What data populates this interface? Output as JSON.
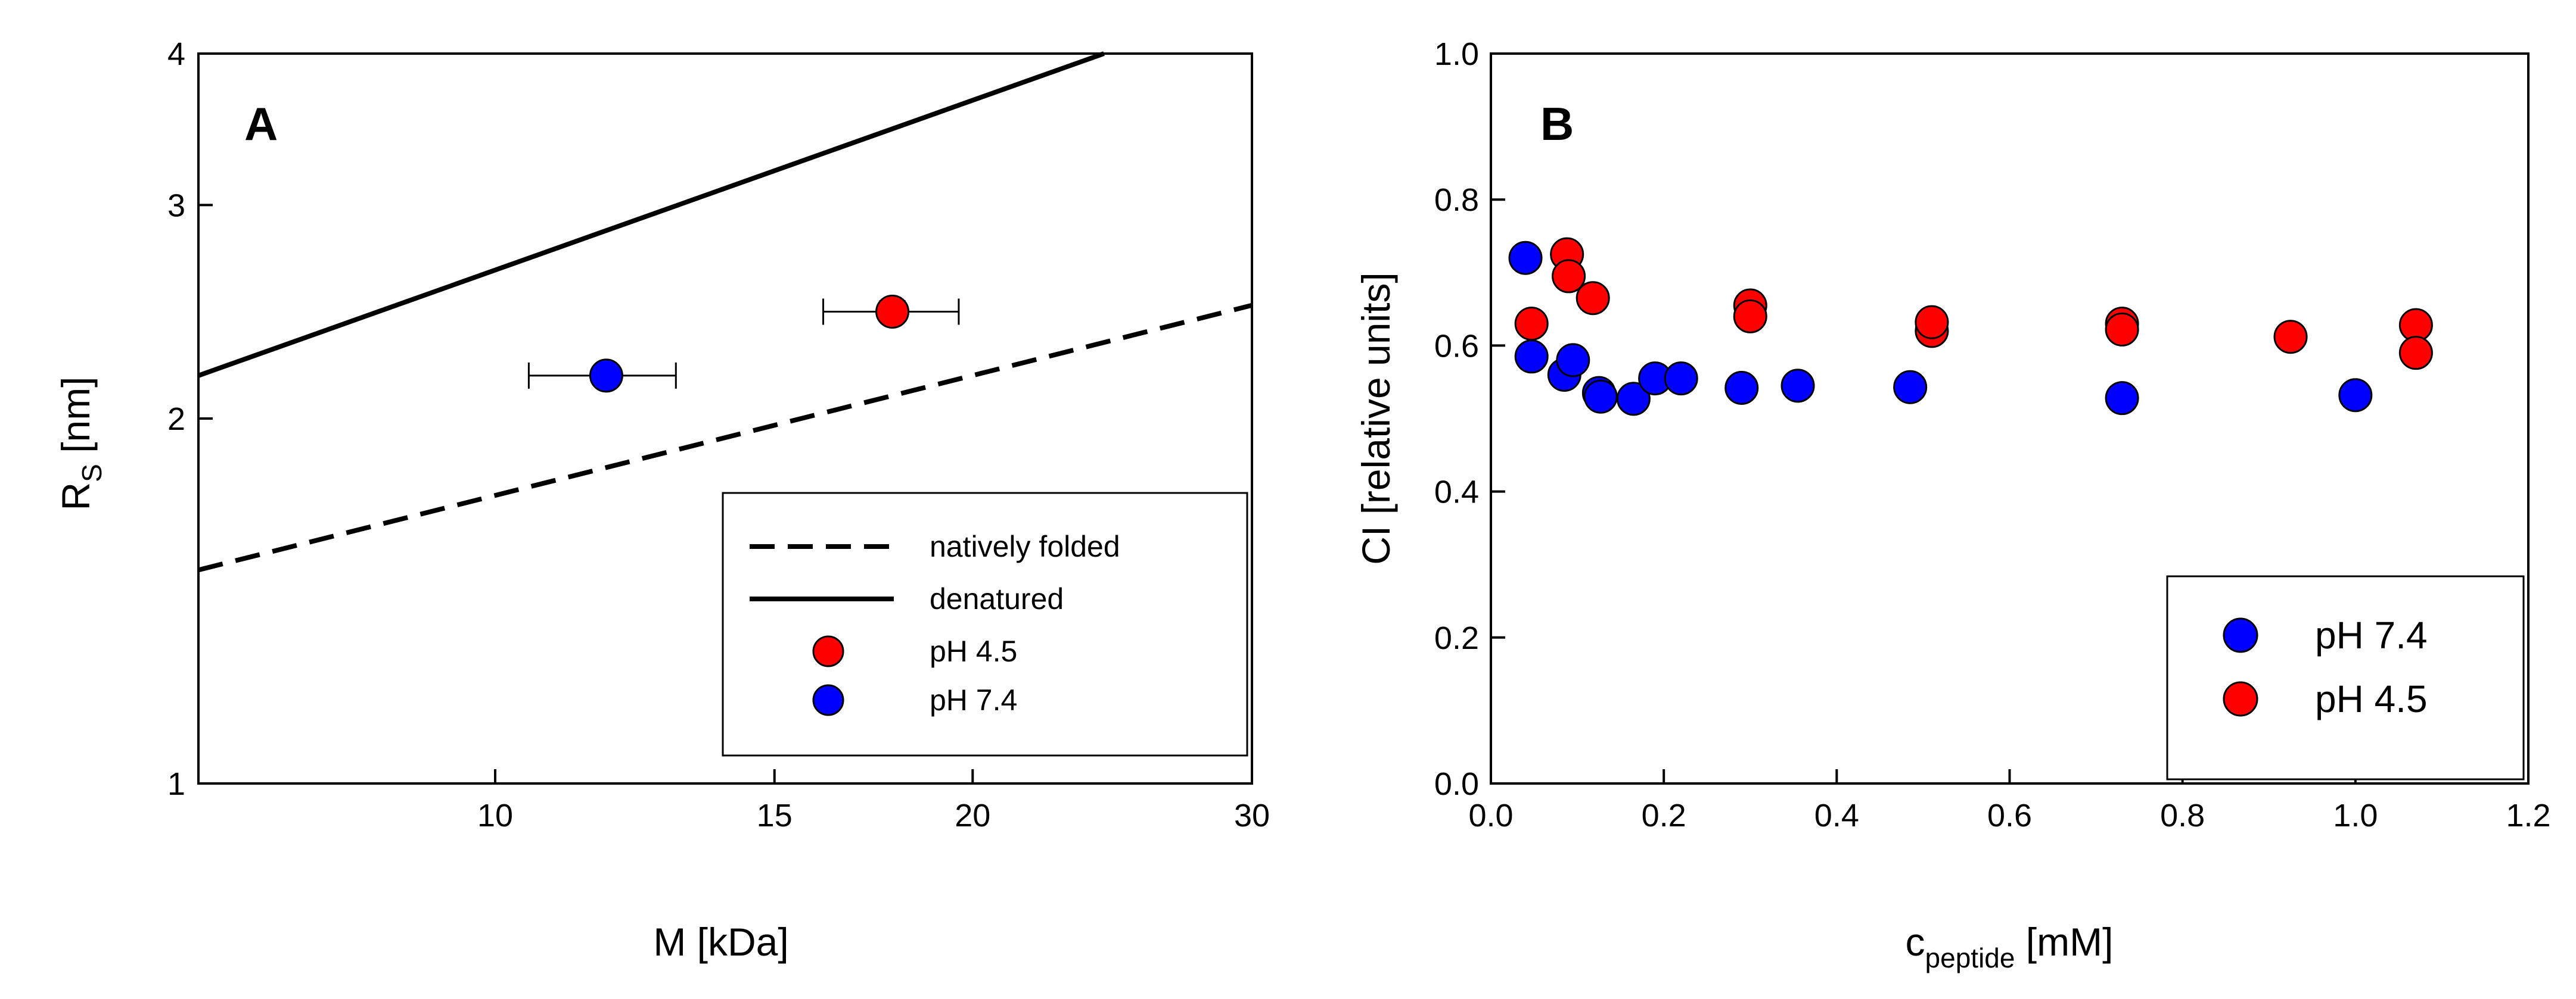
{
  "chart_data": [
    {
      "type": "scatter",
      "panel_label": "A",
      "xscale": "log",
      "yscale": "log",
      "xlim": [
        6.5,
        30
      ],
      "ylim": [
        1,
        4
      ],
      "xticks": [
        10,
        15,
        20,
        30
      ],
      "yticks": [
        1,
        2,
        3,
        4
      ],
      "xlabel": "M [kDa]",
      "ylabel_main": "R",
      "ylabel_sub": "S",
      "ylabel_tail": " [nm]",
      "lines": [
        {
          "name": "natively folded",
          "style": "dashed",
          "x": [
            6.5,
            30
          ],
          "y": [
            1.5,
            2.48
          ]
        },
        {
          "name": "denatured",
          "style": "solid",
          "x": [
            6.5,
            24.2
          ],
          "y": [
            2.17,
            4.0
          ]
        }
      ],
      "points": [
        {
          "name": "pH 7.4",
          "color": "#0000ff",
          "x": 11.75,
          "y": 2.17,
          "xerr": [
            10.5,
            13.0
          ],
          "yerr": [
            2.13,
            2.21
          ]
        },
        {
          "name": "pH 4.5",
          "color": "#ff0000",
          "x": 17.8,
          "y": 2.45,
          "xerr": [
            16.1,
            19.6
          ],
          "yerr": [
            2.41,
            2.5
          ]
        }
      ],
      "legend": {
        "position": "bottom-right",
        "entries": [
          {
            "label": "natively folded",
            "kind": "dashed"
          },
          {
            "label": "denatured",
            "kind": "solid"
          },
          {
            "label": "pH 4.5",
            "kind": "marker",
            "color": "#ff0000"
          },
          {
            "label": "pH 7.4",
            "kind": "marker",
            "color": "#0000ff"
          }
        ]
      }
    },
    {
      "type": "scatter",
      "panel_label": "B",
      "xlim": [
        0,
        1.2
      ],
      "ylim": [
        0,
        1
      ],
      "xticks": [
        "0.0",
        "0.2",
        "0.4",
        "0.6",
        "0.8",
        "1.0",
        "1.2"
      ],
      "yticks": [
        "0.0",
        "0.2",
        "0.4",
        "0.6",
        "0.8",
        "1.0"
      ],
      "xlabel_main": "c",
      "xlabel_sub": "peptide",
      "xlabel_tail": " [mM]",
      "ylabel": "CI [relative units]",
      "series": [
        {
          "name": "pH 7.4",
          "color": "#0000ff",
          "x": [
            0.04,
            0.047,
            0.085,
            0.095,
            0.125,
            0.127,
            0.165,
            0.19,
            0.22,
            0.29,
            0.355,
            0.485,
            0.73,
            1.0
          ],
          "y": [
            0.72,
            0.585,
            0.56,
            0.58,
            0.535,
            0.53,
            0.527,
            0.555,
            0.555,
            0.542,
            0.545,
            0.543,
            0.528,
            0.532
          ]
        },
        {
          "name": "pH 4.5",
          "color": "#ff0000",
          "x": [
            0.047,
            0.088,
            0.09,
            0.118,
            0.3,
            0.3,
            0.51,
            0.51,
            0.73,
            0.73,
            0.925,
            1.07,
            1.07
          ],
          "y": [
            0.63,
            0.725,
            0.695,
            0.665,
            0.655,
            0.64,
            0.62,
            0.632,
            0.63,
            0.622,
            0.612,
            0.628,
            0.59
          ]
        }
      ],
      "legend": {
        "position": "bottom-right",
        "entries": [
          {
            "label": "pH 7.4",
            "color": "#0000ff"
          },
          {
            "label": "pH 4.5",
            "color": "#ff0000"
          }
        ]
      }
    }
  ]
}
